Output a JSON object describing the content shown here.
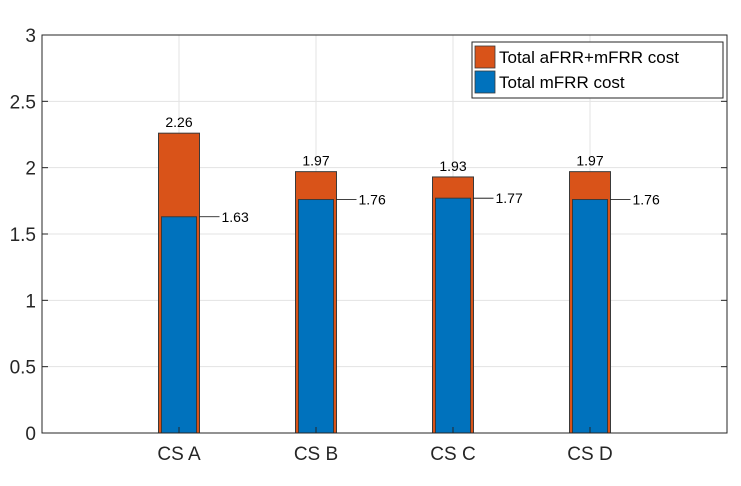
{
  "chart_data": {
    "type": "bar",
    "categories": [
      "CS A",
      "CS B",
      "CS C",
      "CS D"
    ],
    "series": [
      {
        "name": "Total aFRR+mFRR cost",
        "values": [
          2.26,
          1.97,
          1.93,
          1.97
        ],
        "color": "#D95319"
      },
      {
        "name": "Total mFRR cost",
        "values": [
          1.63,
          1.76,
          1.77,
          1.76
        ],
        "color": "#0072BD"
      }
    ],
    "top_labels": [
      "2.26",
      "1.97",
      "1.93",
      "1.97"
    ],
    "inner_labels": [
      "1.63",
      "1.76",
      "1.77",
      "1.76"
    ],
    "y_ticks": [
      "0",
      "0.5",
      "1",
      "1.5",
      "2",
      "2.5",
      "3"
    ],
    "ylim": [
      0,
      3
    ],
    "grid": true,
    "legend_position": "top-right",
    "title": "",
    "xlabel": "",
    "ylabel": ""
  }
}
